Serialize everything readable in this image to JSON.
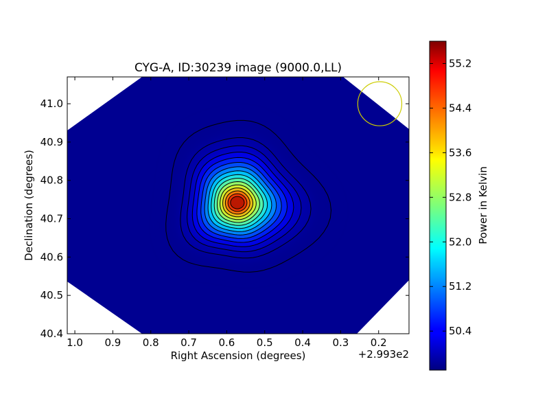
{
  "chart_data": {
    "type": "heatmap",
    "title": "CYG-A, ID:30239 image (9000.0,LL)",
    "xlabel": "Right Ascension (degrees)",
    "ylabel": "Declination (degrees)",
    "x_offset_label": "+2.993e2",
    "xlim": [
      1.02,
      0.12
    ],
    "ylim": [
      40.4,
      41.07
    ],
    "x_ticks": [
      "1.0",
      "0.9",
      "0.8",
      "0.7",
      "0.6",
      "0.5",
      "0.4",
      "0.3",
      "0.2"
    ],
    "x_tick_values": [
      1.0,
      0.9,
      0.8,
      0.7,
      0.6,
      0.5,
      0.4,
      0.3,
      0.2
    ],
    "y_ticks": [
      "40.4",
      "40.5",
      "40.6",
      "40.7",
      "40.8",
      "40.9",
      "41.0"
    ],
    "y_tick_values": [
      40.4,
      40.5,
      40.6,
      40.7,
      40.8,
      40.9,
      41.0
    ],
    "colorbar": {
      "label": "Power in Kelvin",
      "range": [
        49.7,
        55.6
      ],
      "ticks": [
        "50.4",
        "51.2",
        "52.0",
        "52.8",
        "53.6",
        "54.4",
        "55.2"
      ],
      "tick_values": [
        50.4,
        51.2,
        52.0,
        52.8,
        53.6,
        54.4,
        55.2
      ],
      "colormap": "jet"
    },
    "peak": {
      "ra": 0.572,
      "dec": 40.742,
      "value": 55.5
    },
    "background_value": 49.8,
    "map_extent": {
      "ra": [
        1.02,
        0.12
      ],
      "dec": [
        40.4,
        41.07
      ]
    },
    "contour_levels": 16,
    "beam": {
      "ra": 0.197,
      "dec": 41.0,
      "radius_deg": 0.058,
      "color": "#cccc00"
    },
    "grid": false
  }
}
